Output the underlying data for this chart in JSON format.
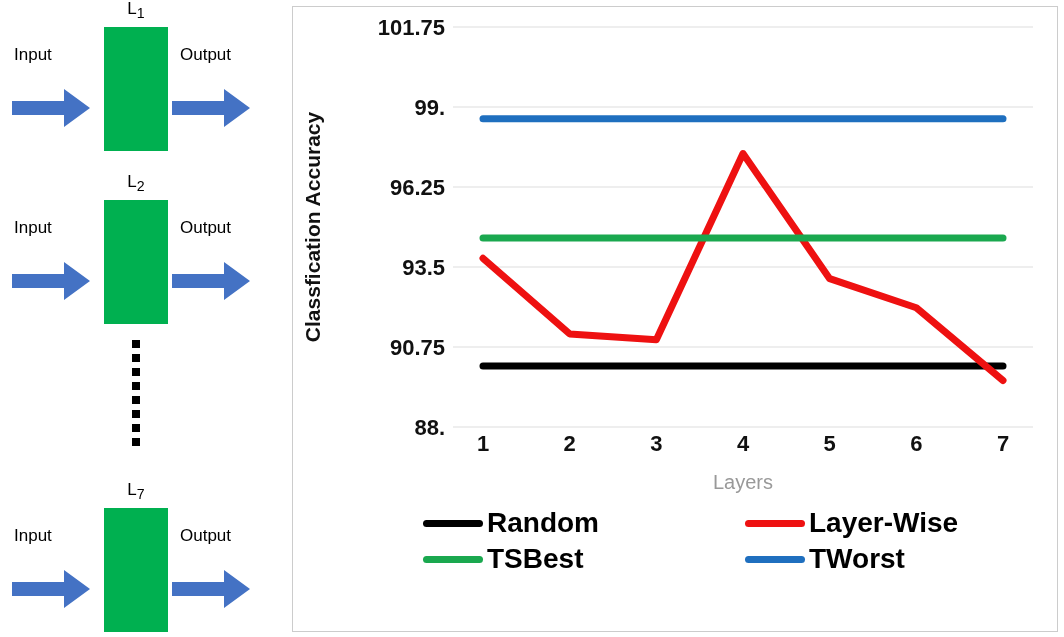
{
  "chart_data": {
    "type": "line",
    "ylabel": "Classfication Accuracy",
    "xlabel": "Layers",
    "categories": [
      "1",
      "2",
      "3",
      "4",
      "5",
      "6",
      "7"
    ],
    "series": [
      {
        "name": "Random",
        "color": "#000000",
        "values": [
          90.1,
          90.1,
          90.1,
          90.1,
          90.1,
          90.1,
          90.1
        ]
      },
      {
        "name": "Layer-Wise",
        "color": "#ee1111",
        "values": [
          93.8,
          91.2,
          91.0,
          97.4,
          93.1,
          92.1,
          89.6
        ]
      },
      {
        "name": "TSBest",
        "color": "#1aa84f",
        "values": [
          94.5,
          94.5,
          94.5,
          94.5,
          94.5,
          94.5,
          94.5
        ]
      },
      {
        "name": "TWorst",
        "color": "#1f6fbf",
        "values": [
          98.6,
          98.6,
          98.6,
          98.6,
          98.6,
          98.6,
          98.6
        ]
      }
    ],
    "ylim": [
      88,
      101.75
    ],
    "yticks": [
      {
        "value": 88,
        "label": "88."
      },
      90.75,
      93.5,
      96.25,
      {
        "value": 99,
        "label": "99."
      },
      101.75
    ],
    "grid": "y",
    "legend": "bottom",
    "marker": "none",
    "line_style": "solid",
    "annotations": [
      "L$_{1}$",
      "Input",
      "Output",
      "L$_{2}$",
      "Input",
      "Output",
      "L$_{7}$",
      "Input",
      "Output"
    ]
  }
}
